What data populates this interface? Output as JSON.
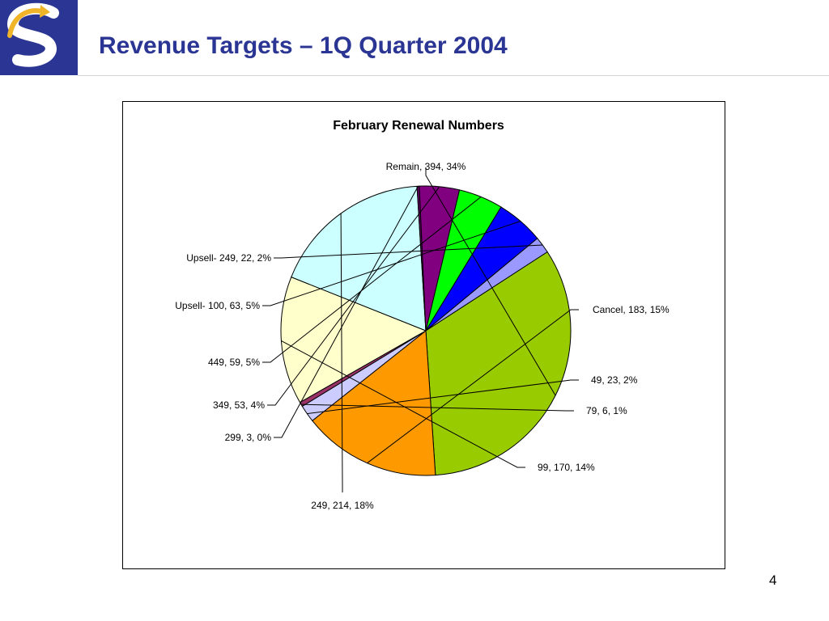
{
  "header": {
    "title": "Revenue Targets – 1Q Quarter 2004"
  },
  "footer": {
    "page_number": "4"
  },
  "colors": {
    "title": "#2b3694",
    "logo_navy": "#2b3694",
    "logo_gold": "#f0b429"
  },
  "chart_data": {
    "type": "pie",
    "title": "February Renewal Numbers",
    "legend": "none",
    "slices": [
      {
        "name": "Remain",
        "value": 394,
        "percent": "34%",
        "label": "Remain, 394, 34%",
        "color": "#99cc00"
      },
      {
        "name": "Cancel",
        "value": 183,
        "percent": "15%",
        "label": "Cancel, 183, 15%",
        "color": "#ff9900"
      },
      {
        "name": "49",
        "value": 23,
        "percent": "2%",
        "label": "49, 23, 2%",
        "color": "#ccccff"
      },
      {
        "name": "79",
        "value": 6,
        "percent": "1%",
        "label": "79, 6, 1%",
        "color": "#993366"
      },
      {
        "name": "99",
        "value": 170,
        "percent": "14%",
        "label": "99, 170, 14%",
        "color": "#ffffcc"
      },
      {
        "name": "249",
        "value": 214,
        "percent": "18%",
        "label": "249, 214, 18%",
        "color": "#ccffff"
      },
      {
        "name": "299",
        "value": 3,
        "percent": "0%",
        "label": "299, 3, 0%",
        "color": "#660066"
      },
      {
        "name": "349",
        "value": 53,
        "percent": "4%",
        "label": "349, 53, 4%",
        "color": "#800080"
      },
      {
        "name": "449",
        "value": 59,
        "percent": "5%",
        "label": "449, 59, 5%",
        "color": "#00ff00"
      },
      {
        "name": "Upsell- 100",
        "value": 63,
        "percent": "5%",
        "label": "Upsell- 100, 63, 5%",
        "color": "#0000ff"
      },
      {
        "name": "Upsell- 249",
        "value": 22,
        "percent": "2%",
        "label": "Upsell- 249, 22, 2%",
        "color": "#9999ff"
      }
    ]
  }
}
